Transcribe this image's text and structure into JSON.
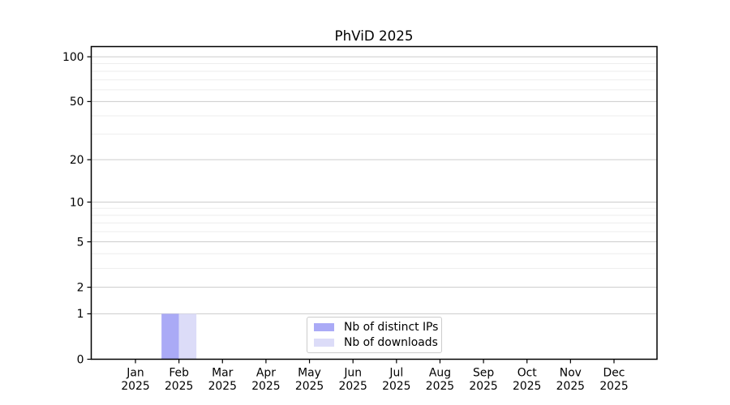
{
  "chart_data": {
    "type": "bar",
    "title": "PhViD 2025",
    "categories": [
      "Jan",
      "Feb",
      "Mar",
      "Apr",
      "May",
      "Jun",
      "Jul",
      "Aug",
      "Sep",
      "Oct",
      "Nov",
      "Dec"
    ],
    "category_year": "2025",
    "series": [
      {
        "name": "Nb of distinct IPs",
        "color": "#aaaaf6",
        "values": [
          0,
          1,
          0,
          0,
          0,
          0,
          0,
          0,
          0,
          0,
          0,
          0
        ]
      },
      {
        "name": "Nb of downloads",
        "color": "#dcdcf8",
        "values": [
          0,
          1,
          0,
          0,
          0,
          0,
          0,
          0,
          0,
          0,
          0,
          0
        ]
      }
    ],
    "xlabel": "",
    "ylabel": "",
    "y_scale": "log10(1+v)",
    "y_ticks": [
      0,
      1,
      2,
      5,
      10,
      20,
      50,
      100
    ],
    "y_minor_ticks": [
      3,
      4,
      6,
      7,
      8,
      9,
      30,
      40,
      60,
      70,
      80,
      90
    ],
    "ylim": [
      0,
      117
    ],
    "grid": "horizontal",
    "legend_position": "lower center inside",
    "colors": {
      "major_grid": "#cccccc",
      "minor_grid": "#eeeeee",
      "axis": "#000000",
      "background": "#ffffff",
      "legend_border": "#cccccc"
    }
  }
}
